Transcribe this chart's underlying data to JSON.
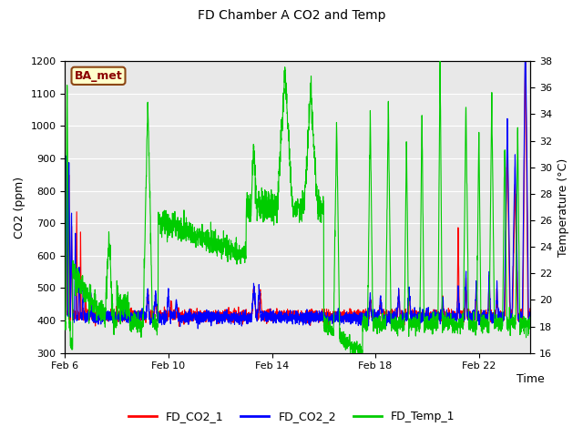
{
  "title": "FD Chamber A CO2 and Temp",
  "xlabel": "Time",
  "ylabel_left": "CO2 (ppm)",
  "ylabel_right": "Temperature (°C)",
  "ylim_left": [
    300,
    1200
  ],
  "ylim_right": [
    16,
    38
  ],
  "x_ticks_labels": [
    "Feb 6",
    "Feb 10",
    "Feb 14",
    "Feb 18",
    "Feb 22"
  ],
  "annotation_text": "BA_met",
  "annotation_box_color": "#ffffcc",
  "annotation_border_color": "#8B4513",
  "annotation_text_color": "#8B0000",
  "background_color": "#ffffff",
  "plot_bg_color": "#e8e8e8",
  "grid_color": "#ffffff",
  "legend_entries": [
    "FD_CO2_1",
    "FD_CO2_2",
    "FD_Temp_1"
  ],
  "legend_colors": [
    "#ff0000",
    "#0000ff",
    "#00cc00"
  ],
  "co2_1_color": "#ff0000",
  "co2_2_color": "#0000ff",
  "temp_color": "#00cc00",
  "line_width": 0.8,
  "num_points": 3000
}
